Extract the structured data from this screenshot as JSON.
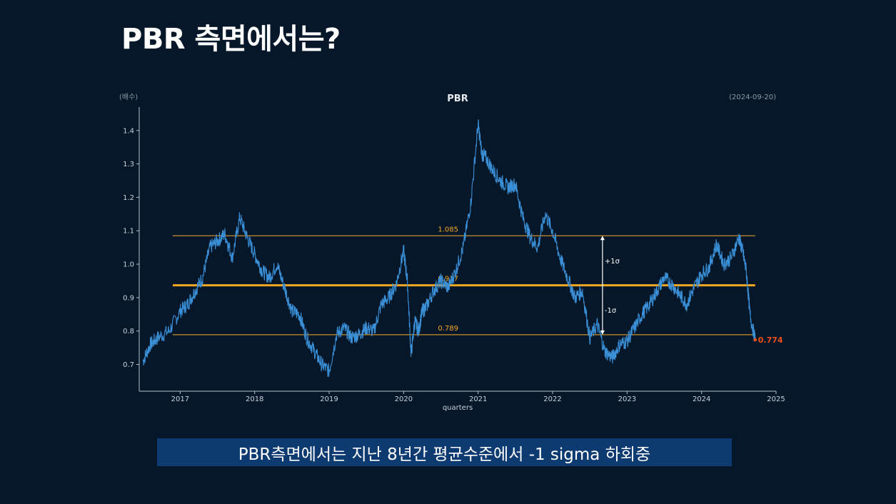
{
  "slide": {
    "title": "PBR 측면에서는?",
    "caption": "PBR측면에서는 지난 8년간 평균수준에서 -1 sigma 하회중"
  },
  "chart_data": {
    "type": "line",
    "title": "PBR",
    "unit_label": "(배수)",
    "date_label": "(2024-09-20)",
    "xlabel": "quarters",
    "ylabel": "",
    "ylim": [
      0.62,
      1.47
    ],
    "xlim": [
      2016.45,
      2025.0
    ],
    "yticks": [
      0.7,
      0.8,
      0.9,
      1.0,
      1.1,
      1.2,
      1.3,
      1.4
    ],
    "xticks": [
      2017,
      2018,
      2019,
      2020,
      2021,
      2022,
      2023,
      2024,
      2025
    ],
    "grid": false,
    "colors": {
      "series": "#3a8fd6",
      "mean": "#f5a623",
      "band": "#c8902a",
      "last": "#f04e1a",
      "arrow": "#ffffff",
      "axis": "#b7bfc9",
      "text": "#c9d1da"
    },
    "reference_lines": [
      {
        "name": "upper",
        "value": 1.085,
        "label": "1.085"
      },
      {
        "name": "mean",
        "value": 0.937,
        "label": "0.937"
      },
      {
        "name": "lower",
        "value": 0.789,
        "label": "0.789"
      }
    ],
    "sigma_labels": [
      "+1σ",
      "-1σ"
    ],
    "sigma_x": 2022.67,
    "last_value": {
      "x": 2024.72,
      "y": 0.774,
      "label": "0.774"
    },
    "series": [
      {
        "x": [
          2016.5,
          2016.6,
          2016.7,
          2016.85,
          2017.0,
          2017.1,
          2017.2,
          2017.3,
          2017.4,
          2017.5,
          2017.6,
          2017.7,
          2017.8,
          2017.9,
          2018.0,
          2018.1,
          2018.2,
          2018.3,
          2018.4,
          2018.5,
          2018.6,
          2018.7,
          2018.8,
          2018.9,
          2019.0,
          2019.1,
          2019.2,
          2019.3,
          2019.4,
          2019.5,
          2019.6,
          2019.7,
          2019.8,
          2019.9,
          2020.0,
          2020.05,
          2020.1,
          2020.15,
          2020.2,
          2020.25,
          2020.3,
          2020.4,
          2020.5,
          2020.6,
          2020.7,
          2020.8,
          2020.9,
          2021.0,
          2021.05,
          2021.1,
          2021.2,
          2021.3,
          2021.4,
          2021.5,
          2021.6,
          2021.7,
          2021.8,
          2021.9,
          2022.0,
          2022.1,
          2022.2,
          2022.3,
          2022.4,
          2022.5,
          2022.6,
          2022.7,
          2022.8,
          2022.9,
          2023.0,
          2023.1,
          2023.2,
          2023.3,
          2023.4,
          2023.5,
          2023.6,
          2023.7,
          2023.8,
          2023.9,
          2024.0,
          2024.1,
          2024.2,
          2024.3,
          2024.4,
          2024.5,
          2024.55,
          2024.6,
          2024.65,
          2024.72
        ],
        "values": [
          0.71,
          0.76,
          0.78,
          0.8,
          0.86,
          0.88,
          0.92,
          0.96,
          1.05,
          1.07,
          1.09,
          1.02,
          1.14,
          1.08,
          1.03,
          0.98,
          0.96,
          1.0,
          0.93,
          0.86,
          0.85,
          0.78,
          0.74,
          0.7,
          0.68,
          0.79,
          0.81,
          0.78,
          0.79,
          0.81,
          0.8,
          0.88,
          0.9,
          0.94,
          1.04,
          0.95,
          0.73,
          0.83,
          0.8,
          0.86,
          0.87,
          0.92,
          0.95,
          0.93,
          0.98,
          1.05,
          1.18,
          1.42,
          1.33,
          1.32,
          1.28,
          1.25,
          1.23,
          1.24,
          1.14,
          1.08,
          1.05,
          1.15,
          1.1,
          1.02,
          0.96,
          0.9,
          0.92,
          0.78,
          0.82,
          0.74,
          0.72,
          0.76,
          0.77,
          0.81,
          0.85,
          0.88,
          0.92,
          0.96,
          0.94,
          0.91,
          0.88,
          0.93,
          0.97,
          0.99,
          1.06,
          1.0,
          1.02,
          1.08,
          1.04,
          0.98,
          0.85,
          0.774
        ]
      }
    ]
  }
}
